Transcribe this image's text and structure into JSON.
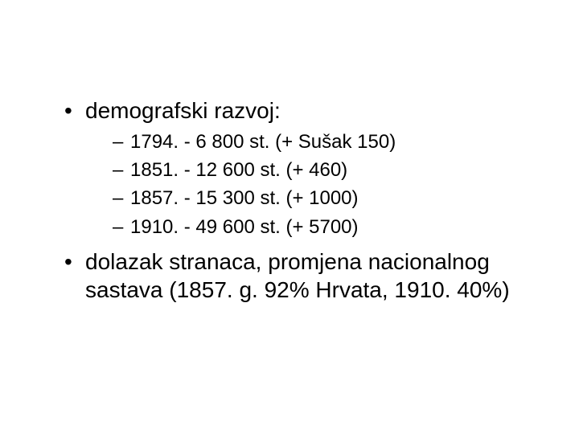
{
  "slide": {
    "background_color": "#ffffff",
    "text_color": "#000000",
    "font_family": "Arial",
    "bullets": [
      {
        "text": "demografski razvoj:",
        "fontsize": 28,
        "sub": [
          {
            "text": "1794. -   6 800 st. (+ Sušak 150)",
            "fontsize": 24
          },
          {
            "text": "1851. - 12 600 st. (+ 460)",
            "fontsize": 24
          },
          {
            "text": "1857. - 15 300 st. (+ 1000)",
            "fontsize": 24
          },
          {
            "text": "1910. - 49 600 st. (+ 5700)",
            "fontsize": 24
          }
        ]
      },
      {
        "text": "dolazak stranaca, promjena nacionalnog sastava (1857. g. 92% Hrvata, 1910. 40%)",
        "fontsize": 28,
        "sub": []
      }
    ]
  }
}
